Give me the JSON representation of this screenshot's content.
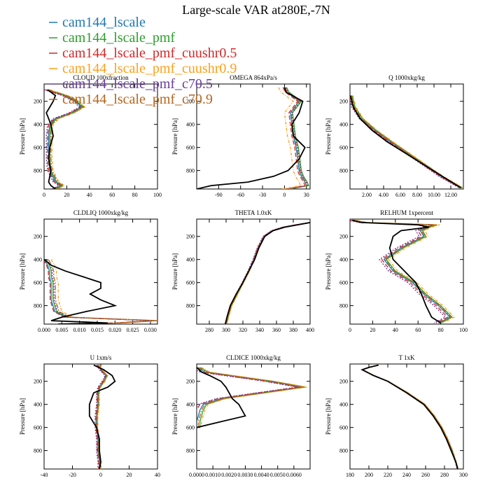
{
  "figure": {
    "title": "Large-scale VAR at280E,-7N",
    "colors": {
      "ref": "#000000",
      "cam144_lscale": "#1f77b4",
      "cam144_lscale_pmf": "#2ca02c",
      "cam144_lscale_pmf_cuushr0.5": "#d62728",
      "cam144_lscale_pmf_cuushr0.9": "#ff9f1c",
      "cam144_lscale_pmf_c70.5": "#6a3d9a",
      "cam144_lscale_pmf_c70.9": "#b5651d"
    }
  },
  "legend": [
    {
      "name": "cam144_lscale",
      "color": "#1f77b4"
    },
    {
      "name": "cam144_lscale_pmf",
      "color": "#2ca02c"
    },
    {
      "name": "cam144_lscale_pmf_cuushr0.5",
      "color": "#d62728"
    },
    {
      "name": "cam144_lscale_pmf_cuushr0.9",
      "color": "#ff9f1c"
    },
    {
      "name": "cam144_lscale_pmf_c70.5",
      "color": "#6a3d9a"
    },
    {
      "name": "cam144_lscale_pmf_c70.9",
      "color": "#b5651d"
    }
  ],
  "chart_data": [
    {
      "type": "line",
      "title": "CLOUD 100xfraction",
      "ylabel": "Pressure [hPa]",
      "xlim": [
        0,
        100
      ],
      "ylim": [
        960,
        50
      ],
      "xticks": [
        0,
        20,
        40,
        60,
        80,
        100
      ],
      "xtick_labels": [
        "0",
        "20",
        "40",
        "60",
        "80",
        "100"
      ],
      "yticks": [
        200,
        400,
        600,
        800
      ],
      "ytick_labels": [
        "200",
        "400",
        "600",
        "800"
      ],
      "pressure": [
        100,
        150,
        200,
        250,
        300,
        350,
        400,
        500,
        600,
        700,
        800,
        900,
        930,
        960
      ],
      "reference": [
        3,
        10,
        8,
        5,
        2,
        4,
        6,
        8,
        5,
        4,
        6,
        4,
        6,
        10
      ],
      "model_base": [
        2,
        18,
        28,
        33,
        24,
        10,
        5,
        4,
        4,
        4,
        5,
        10,
        15,
        9
      ],
      "model_offsets": [
        0,
        1,
        -1,
        3,
        -2,
        2
      ]
    },
    {
      "type": "line",
      "title": "OMEGA 864xPa/s",
      "ylabel": "Pressure [hPa]",
      "xlim": [
        -120,
        35
      ],
      "ylim": [
        960,
        50
      ],
      "xticks": [
        -90,
        -60,
        -30,
        0,
        30
      ],
      "xtick_labels": [
        "-90",
        "-60",
        "-30",
        "0",
        "30"
      ],
      "yticks": [
        200,
        400,
        600,
        800
      ],
      "ytick_labels": [
        "200",
        "400",
        "600",
        "800"
      ],
      "pressure": [
        80,
        120,
        200,
        300,
        400,
        500,
        600,
        700,
        800,
        850,
        900,
        930,
        960
      ],
      "reference": [
        0,
        2,
        25,
        20,
        10,
        12,
        28,
        20,
        5,
        -15,
        -50,
        -100,
        -120
      ],
      "model_base": [
        0,
        3,
        20,
        8,
        10,
        12,
        16,
        18,
        20,
        23,
        28,
        30,
        5
      ],
      "model_offsets": [
        0,
        3,
        -2,
        -8,
        2,
        1
      ]
    },
    {
      "type": "line",
      "title": "Q  1000xkg/kg",
      "ylabel": "Pressure [hPa]",
      "xlim": [
        0,
        13.5
      ],
      "ylim": [
        960,
        50
      ],
      "xticks": [
        2,
        4,
        6,
        8,
        10,
        12
      ],
      "xtick_labels": [
        "2.00",
        "4.00",
        "6.00",
        "8.00",
        "10.00",
        "12.00"
      ],
      "yticks": [
        200,
        400,
        600,
        800
      ],
      "ytick_labels": [
        "200",
        "400",
        "600",
        "800"
      ],
      "pressure": [
        150,
        250,
        350,
        450,
        550,
        650,
        750,
        850,
        950
      ],
      "reference": [
        0.05,
        0.4,
        1.2,
        2.6,
        4.4,
        6.6,
        8.8,
        11.0,
        13.2
      ],
      "model_base": [
        0.05,
        0.4,
        1.3,
        2.9,
        4.8,
        6.8,
        8.8,
        10.8,
        13.2
      ],
      "model_offsets": [
        0,
        0.2,
        -0.1,
        0.3,
        -0.2,
        0.1
      ]
    },
    {
      "type": "line",
      "title": "CLDLIQ  1000xkg/kg",
      "ylabel": "Pressure [hPa]",
      "xlim": [
        0,
        0.032
      ],
      "ylim": [
        960,
        50
      ],
      "xticks": [
        0,
        0.005,
        0.01,
        0.015,
        0.02,
        0.025,
        0.03
      ],
      "xtick_labels": [
        "0.000",
        "0.005",
        "0.010",
        "0.015",
        "0.020",
        "0.025",
        "0.030"
      ],
      "yticks": [
        200,
        400,
        600,
        800
      ],
      "ytick_labels": [
        "200",
        "400",
        "600",
        "800"
      ],
      "pressure": [
        400,
        450,
        500,
        550,
        600,
        650,
        700,
        750,
        800,
        850,
        900,
        930,
        950,
        960
      ],
      "reference": [
        0,
        0.002,
        0.006,
        0.011,
        0.016,
        0.016,
        0.013,
        0.016,
        0.02,
        0.012,
        0.005,
        0.002,
        0.018,
        0.004
      ],
      "model_base": [
        0,
        0.001,
        0.0015,
        0.0015,
        0.002,
        0.002,
        0.002,
        0.002,
        0.0025,
        0.003,
        0.006,
        0.031,
        0.02,
        0.003
      ],
      "model_offsets": [
        0,
        0.0005,
        -0.0003,
        0.002,
        0.0008,
        0.0012
      ]
    },
    {
      "type": "line",
      "title": "THETA  1.0xK",
      "ylabel": "Pressure [hPa]",
      "xlim": [
        265,
        400
      ],
      "ylim": [
        960,
        50
      ],
      "xticks": [
        280,
        300,
        320,
        340,
        360,
        380,
        400
      ],
      "xtick_labels": [
        "280",
        "300",
        "320",
        "340",
        "360",
        "380",
        "400"
      ],
      "yticks": [
        200,
        400,
        600,
        800
      ],
      "ytick_labels": [
        "200",
        "400",
        "600",
        "800"
      ],
      "pressure": [
        80,
        100,
        120,
        150,
        200,
        300,
        400,
        500,
        600,
        700,
        800,
        900,
        960
      ],
      "reference": [
        400,
        385,
        370,
        356,
        346,
        339,
        334,
        327,
        320,
        312,
        305,
        301,
        299
      ],
      "model_base": [
        400,
        383,
        368,
        355,
        345,
        338,
        333,
        327,
        320,
        313,
        306,
        302,
        300
      ],
      "model_offsets": [
        0,
        0.5,
        -0.5,
        1,
        -1,
        0.3
      ]
    },
    {
      "type": "line",
      "title": "RELHUM  1xpercent",
      "ylabel": "Pressure [hPa]",
      "xlim": [
        0,
        100
      ],
      "ylim": [
        960,
        50
      ],
      "xticks": [
        0,
        20,
        40,
        60,
        80,
        100
      ],
      "xtick_labels": [
        "0",
        "20",
        "40",
        "60",
        "80",
        "100"
      ],
      "yticks": [
        200,
        400,
        600,
        800
      ],
      "ytick_labels": [
        "200",
        "400",
        "600",
        "800"
      ],
      "pressure": [
        60,
        80,
        100,
        120,
        150,
        200,
        300,
        400,
        500,
        600,
        700,
        800,
        900,
        950
      ],
      "reference": [
        2,
        10,
        60,
        70,
        45,
        38,
        35,
        38,
        48,
        58,
        63,
        67,
        72,
        80
      ],
      "model_base": [
        2,
        12,
        75,
        68,
        62,
        65,
        45,
        30,
        38,
        55,
        65,
        78,
        88,
        78
      ],
      "model_offsets": [
        0,
        2,
        -2,
        4,
        -4,
        1
      ]
    },
    {
      "type": "line",
      "title": "U  1xm/s",
      "ylabel": "Pressure [hPa]",
      "xlim": [
        -40,
        40
      ],
      "ylim": [
        960,
        50
      ],
      "xticks": [
        -40,
        -20,
        0,
        20,
        40
      ],
      "xtick_labels": [
        "-40",
        "-20",
        "0",
        "20",
        "40"
      ],
      "yticks": [
        200,
        400,
        600,
        800
      ],
      "ytick_labels": [
        "200",
        "400",
        "600",
        "800"
      ],
      "pressure": [
        60,
        100,
        150,
        200,
        250,
        300,
        400,
        500,
        600,
        700,
        800,
        900,
        960
      ],
      "reference": [
        -5,
        2,
        8,
        10,
        5,
        -5,
        -8,
        -8,
        -3,
        -1,
        -1,
        0,
        -1
      ],
      "model_base": [
        -2,
        0,
        4,
        2,
        -1,
        -2,
        -2,
        -3,
        -3,
        -2,
        -2,
        -1,
        -1
      ],
      "model_offsets": [
        0,
        0.5,
        -0.5,
        1,
        -1,
        0.3
      ]
    },
    {
      "type": "line",
      "title": "CLDICE  1000xkg/kg",
      "ylabel": "Pressure [hPa]",
      "xlim": [
        0,
        0.007
      ],
      "ylim": [
        960,
        50
      ],
      "xticks": [
        0,
        0.001,
        0.002,
        0.003,
        0.004,
        0.005,
        0.006
      ],
      "xtick_labels": [
        "0.0000",
        "0.0010",
        "0.0020",
        "0.0030",
        "0.0040",
        "0.0050",
        "0.0060"
      ],
      "yticks": [
        200,
        400,
        600,
        800
      ],
      "ytick_labels": [
        "200",
        "400",
        "600",
        "800"
      ],
      "pressure": [
        80,
        120,
        150,
        200,
        250,
        300,
        350,
        400,
        450,
        500,
        550,
        600
      ],
      "reference": [
        0,
        0.0003,
        0.0008,
        0.0015,
        0.0018,
        0.002,
        0.0022,
        0.0026,
        0.0028,
        0.003,
        0.0015,
        0
      ],
      "model_base": [
        0,
        0.0005,
        0.002,
        0.0045,
        0.0065,
        0.004,
        0.0015,
        0.0004,
        0.0002,
        0.0001,
        0,
        0
      ],
      "model_offsets": [
        0,
        0.0002,
        -0.0002,
        0.0003,
        -0.0003,
        0.0001
      ]
    },
    {
      "type": "line",
      "title": "T  1xK",
      "ylabel": "Pressure [hPa]",
      "xlim": [
        180,
        300
      ],
      "ylim": [
        960,
        50
      ],
      "xticks": [
        180,
        200,
        220,
        240,
        260,
        280,
        300
      ],
      "xtick_labels": [
        "180",
        "200",
        "220",
        "240",
        "260",
        "280",
        "300"
      ],
      "yticks": [
        200,
        400,
        600,
        800
      ],
      "ytick_labels": [
        "200",
        "400",
        "600",
        "800"
      ],
      "pressure": [
        60,
        80,
        100,
        150,
        200,
        300,
        400,
        500,
        600,
        700,
        800,
        900,
        960
      ],
      "reference": [
        210,
        200,
        193,
        205,
        220,
        240,
        258,
        268,
        276,
        282,
        287,
        292,
        294
      ],
      "model_base": [
        210,
        200,
        193,
        205,
        220,
        241,
        259,
        269,
        277,
        283,
        288,
        292,
        294
      ],
      "model_offsets": [
        0,
        0.3,
        -0.3,
        0.6,
        -0.6,
        0.2
      ]
    }
  ]
}
